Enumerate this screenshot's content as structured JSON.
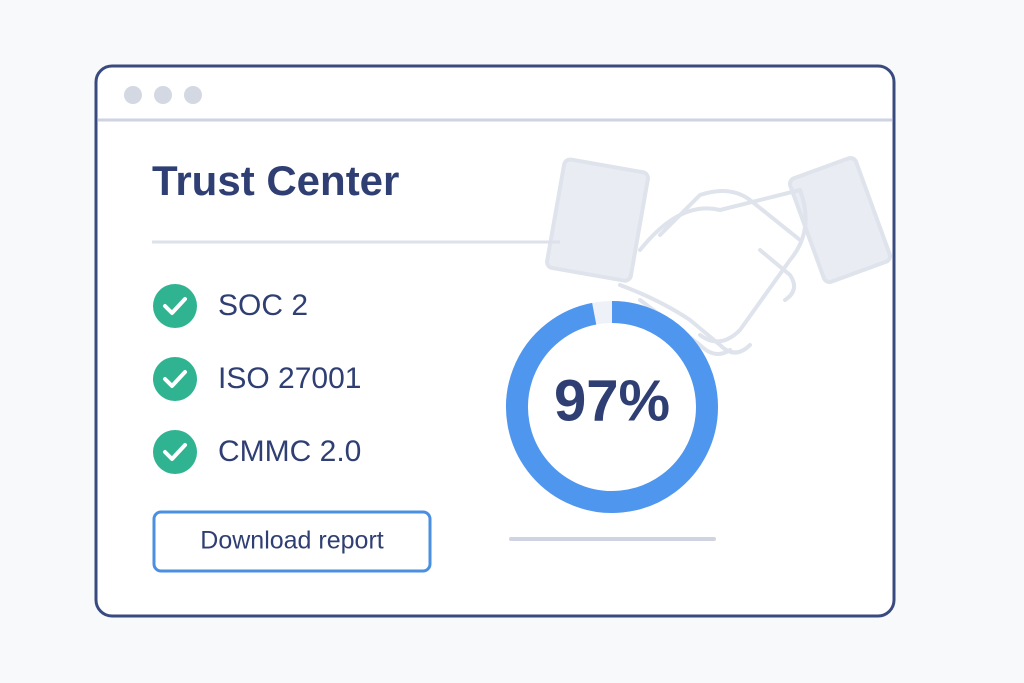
{
  "header": {
    "title": "Trust Center"
  },
  "certifications": [
    "SOC 2",
    "ISO 27001",
    "CMMC 2.0"
  ],
  "button": {
    "label": "Download report"
  },
  "gauge": {
    "value": 97,
    "label": "97%"
  }
}
